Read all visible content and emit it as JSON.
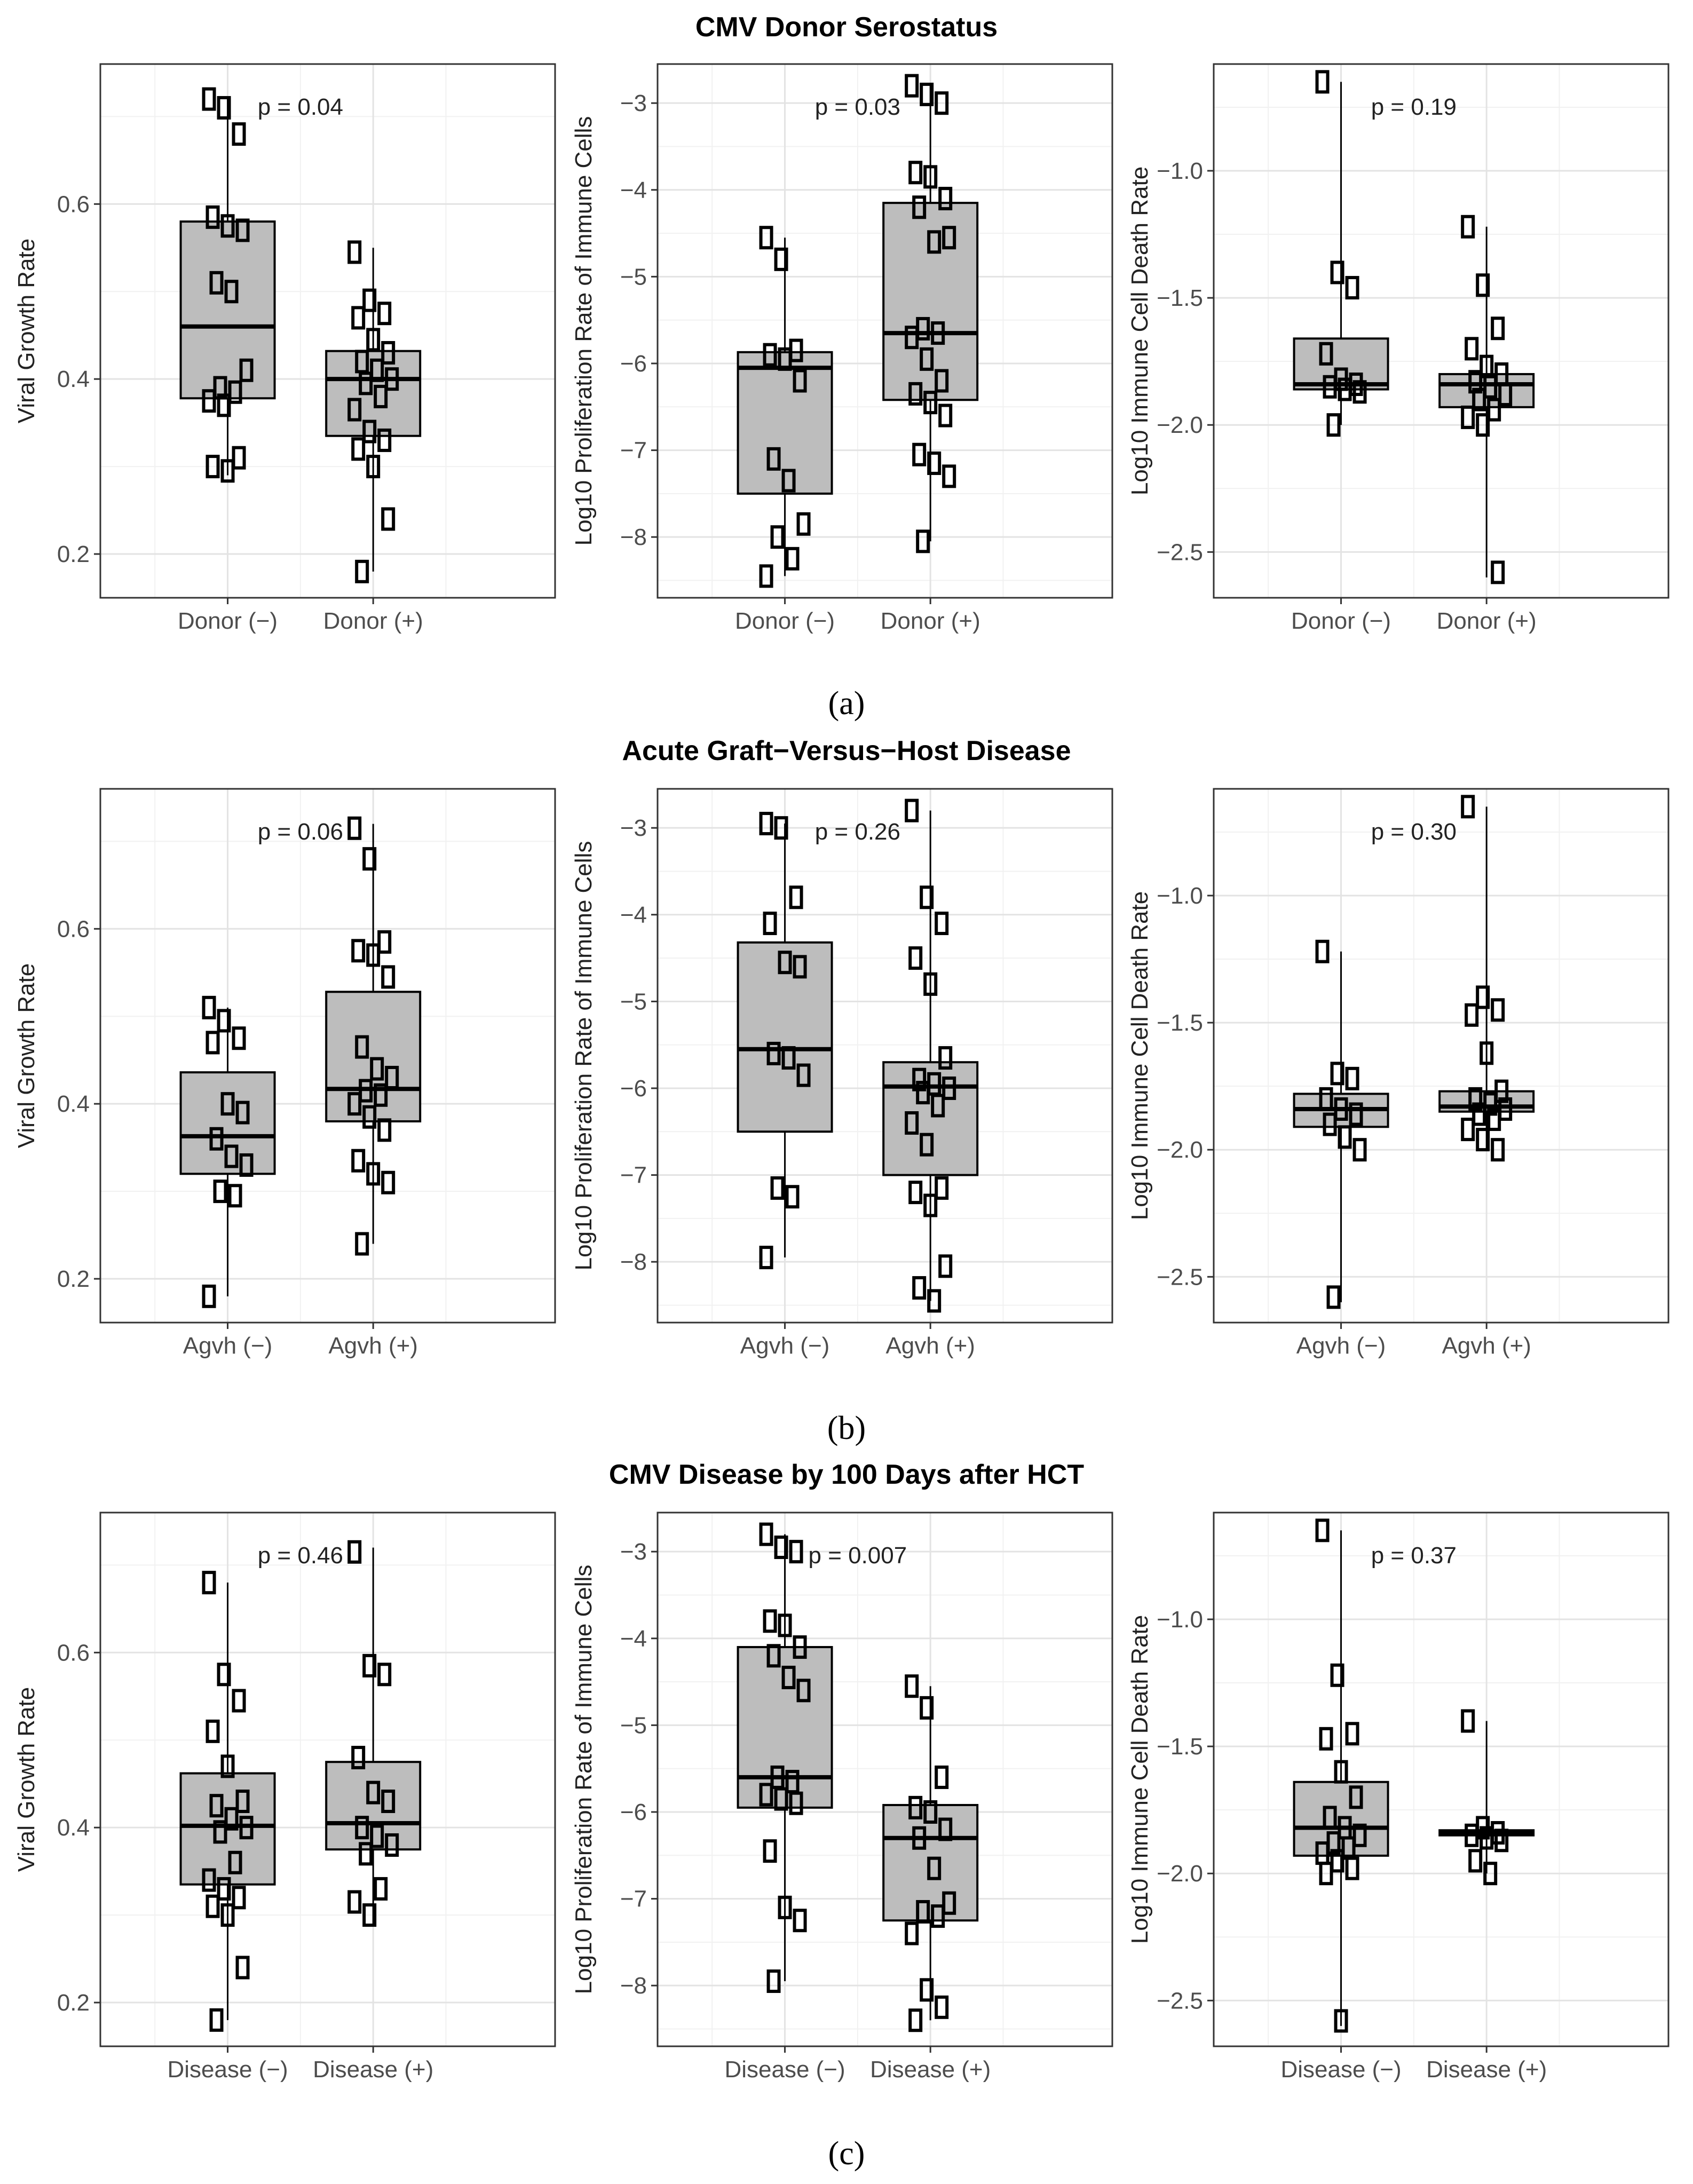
{
  "sections": [
    {
      "title": "CMV Donor Serostatus",
      "caption": "(a)",
      "panels": [
        {
          "ylabel": "Viral Growth Rate",
          "ylim": [
            0.15,
            0.76
          ],
          "yticks": [
            "0.2",
            "0.4",
            "0.6"
          ],
          "ytick_values": [
            0.2,
            0.4,
            0.6
          ],
          "categories": [
            "Donor (−)",
            "Donor (+)"
          ],
          "p_value": "p = 0.04",
          "groups": [
            {
              "q1": 0.378,
              "median": 0.46,
              "q3": 0.58,
              "whisker_low": 0.29,
              "whisker_high": 0.72,
              "points": [
                0.72,
                0.71,
                0.68,
                0.585,
                0.575,
                0.57,
                0.51,
                0.5,
                0.41,
                0.39,
                0.385,
                0.375,
                0.37,
                0.31,
                0.3,
                0.295
              ]
            },
            {
              "q1": 0.335,
              "median": 0.4,
              "q3": 0.432,
              "whisker_low": 0.18,
              "whisker_high": 0.55,
              "points": [
                0.545,
                0.49,
                0.475,
                0.47,
                0.445,
                0.43,
                0.42,
                0.41,
                0.4,
                0.395,
                0.38,
                0.365,
                0.34,
                0.33,
                0.32,
                0.3,
                0.24,
                0.18
              ]
            }
          ]
        },
        {
          "ylabel": "Log10 Proliferation Rate of Immune Cells",
          "ylim": [
            -8.7,
            -2.55
          ],
          "yticks": [
            "−8",
            "−7",
            "−6",
            "−5",
            "−4",
            "−3"
          ],
          "ytick_values": [
            -8,
            -7,
            -6,
            -5,
            -4,
            -3
          ],
          "categories": [
            "Donor (−)",
            "Donor (+)"
          ],
          "p_value": "p = 0.03",
          "groups": [
            {
              "q1": -7.5,
              "median": -6.05,
              "q3": -5.87,
              "whisker_low": -8.45,
              "whisker_high": -4.55,
              "points": [
                -4.55,
                -4.8,
                -5.85,
                -5.9,
                -5.95,
                -6.2,
                -7.1,
                -7.35,
                -7.85,
                -8.0,
                -8.25,
                -8.45
              ]
            },
            {
              "q1": -6.42,
              "median": -5.65,
              "q3": -4.15,
              "whisker_low": -8.05,
              "whisker_high": -2.8,
              "points": [
                -2.8,
                -2.9,
                -3.0,
                -3.8,
                -3.85,
                -4.1,
                -4.2,
                -4.6,
                -4.55,
                -5.6,
                -5.65,
                -5.7,
                -5.95,
                -6.2,
                -6.35,
                -6.45,
                -6.6,
                -7.05,
                -7.15,
                -7.3,
                -8.05
              ]
            }
          ]
        },
        {
          "ylabel": "Log10 Immune Cell Death Rate",
          "ylim": [
            -2.68,
            -0.58
          ],
          "yticks": [
            "−2.5",
            "−2.0",
            "−1.5",
            "−1.0"
          ],
          "ytick_values": [
            -2.5,
            -2.0,
            -1.5,
            -1.0
          ],
          "categories": [
            "Donor (−)",
            "Donor (+)"
          ],
          "p_value": "p = 0.19",
          "groups": [
            {
              "q1": -1.86,
              "median": -1.84,
              "q3": -1.66,
              "whisker_low": -2.0,
              "whisker_high": -0.65,
              "points": [
                -0.65,
                -1.4,
                -1.46,
                -1.72,
                -1.82,
                -1.84,
                -1.85,
                -1.86,
                -1.87,
                -2.0
              ]
            },
            {
              "q1": -1.93,
              "median": -1.84,
              "q3": -1.8,
              "whisker_low": -2.6,
              "whisker_high": -1.22,
              "points": [
                -1.22,
                -1.45,
                -1.62,
                -1.7,
                -1.77,
                -1.8,
                -1.83,
                -1.85,
                -1.88,
                -1.9,
                -1.94,
                -1.97,
                -2.0,
                -2.58
              ]
            }
          ]
        }
      ]
    },
    {
      "title": "Acute Graft−Versus−Host Disease",
      "caption": "(b)",
      "panels": [
        {
          "ylabel": "Viral Growth Rate",
          "ylim": [
            0.15,
            0.76
          ],
          "yticks": [
            "0.2",
            "0.4",
            "0.6"
          ],
          "ytick_values": [
            0.2,
            0.4,
            0.6
          ],
          "categories": [
            "Agvh (−)",
            "Agvh (+)"
          ],
          "p_value": "p = 0.06",
          "groups": [
            {
              "q1": 0.32,
              "median": 0.363,
              "q3": 0.436,
              "whisker_low": 0.18,
              "whisker_high": 0.51,
              "points": [
                0.51,
                0.495,
                0.475,
                0.47,
                0.4,
                0.39,
                0.36,
                0.34,
                0.33,
                0.3,
                0.295,
                0.18
              ]
            },
            {
              "q1": 0.38,
              "median": 0.417,
              "q3": 0.528,
              "whisker_low": 0.24,
              "whisker_high": 0.72,
              "points": [
                0.715,
                0.68,
                0.585,
                0.575,
                0.57,
                0.545,
                0.465,
                0.44,
                0.43,
                0.415,
                0.41,
                0.4,
                0.385,
                0.37,
                0.335,
                0.32,
                0.31,
                0.24
              ]
            }
          ]
        },
        {
          "ylabel": "Log10 Proliferation Rate of Immune Cells",
          "ylim": [
            -8.7,
            -2.55
          ],
          "yticks": [
            "−8",
            "−7",
            "−6",
            "−5",
            "−4",
            "−3"
          ],
          "ytick_values": [
            -8,
            -7,
            -6,
            -5,
            -4,
            -3
          ],
          "categories": [
            "Agvh (−)",
            "Agvh (+)"
          ],
          "p_value": "p = 0.26",
          "groups": [
            {
              "q1": -6.5,
              "median": -5.55,
              "q3": -4.32,
              "whisker_low": -7.95,
              "whisker_high": -2.95,
              "points": [
                -2.95,
                -3.0,
                -3.8,
                -4.1,
                -4.55,
                -4.6,
                -5.6,
                -5.65,
                -5.85,
                -7.15,
                -7.25,
                -7.95
              ]
            },
            {
              "q1": -7.0,
              "median": -5.98,
              "q3": -5.7,
              "whisker_low": -8.45,
              "whisker_high": -2.8,
              "points": [
                -2.8,
                -3.8,
                -4.1,
                -4.5,
                -4.8,
                -5.65,
                -5.9,
                -5.95,
                -6.0,
                -6.05,
                -6.2,
                -6.4,
                -6.65,
                -7.15,
                -7.2,
                -7.35,
                -8.05,
                -8.3,
                -8.45
              ]
            }
          ]
        },
        {
          "ylabel": "Log10 Immune Cell Death Rate",
          "ylim": [
            -2.68,
            -0.58
          ],
          "yticks": [
            "−2.5",
            "−2.0",
            "−1.5",
            "−1.0"
          ],
          "ytick_values": [
            -2.5,
            -2.0,
            -1.5,
            -1.0
          ],
          "categories": [
            "Agvh (−)",
            "Agvh (+)"
          ],
          "p_value": "p = 0.30",
          "groups": [
            {
              "q1": -1.91,
              "median": -1.84,
              "q3": -1.78,
              "whisker_low": -2.6,
              "whisker_high": -1.22,
              "points": [
                -1.22,
                -1.7,
                -1.72,
                -1.8,
                -1.84,
                -1.86,
                -1.9,
                -1.95,
                -2.0,
                -2.58
              ]
            },
            {
              "q1": -1.85,
              "median": -1.83,
              "q3": -1.77,
              "whisker_low": -2.0,
              "whisker_high": -0.65,
              "points": [
                -0.65,
                -1.4,
                -1.45,
                -1.47,
                -1.62,
                -1.77,
                -1.8,
                -1.82,
                -1.84,
                -1.86,
                -1.88,
                -1.92,
                -1.96,
                -2.0
              ]
            }
          ]
        }
      ]
    },
    {
      "title": "CMV Disease by 100 Days after HCT",
      "caption": "(c)",
      "panels": [
        {
          "ylabel": "Viral Growth Rate",
          "ylim": [
            0.15,
            0.76
          ],
          "yticks": [
            "0.2",
            "0.4",
            "0.6"
          ],
          "ytick_values": [
            0.2,
            0.4,
            0.6
          ],
          "categories": [
            "Disease (−)",
            "Disease (+)"
          ],
          "p_value": "p = 0.46",
          "groups": [
            {
              "q1": 0.335,
              "median": 0.402,
              "q3": 0.462,
              "whisker_low": 0.18,
              "whisker_high": 0.68,
              "points": [
                0.68,
                0.575,
                0.545,
                0.51,
                0.47,
                0.43,
                0.425,
                0.41,
                0.4,
                0.395,
                0.36,
                0.34,
                0.33,
                0.32,
                0.31,
                0.3,
                0.24,
                0.18
              ]
            },
            {
              "q1": 0.375,
              "median": 0.405,
              "q3": 0.475,
              "whisker_low": 0.29,
              "whisker_high": 0.72,
              "points": [
                0.715,
                0.585,
                0.575,
                0.48,
                0.44,
                0.43,
                0.4,
                0.39,
                0.38,
                0.37,
                0.33,
                0.315,
                0.3
              ]
            }
          ]
        },
        {
          "ylabel": "Log10 Proliferation Rate of Immune Cells",
          "ylim": [
            -8.7,
            -2.55
          ],
          "yticks": [
            "−8",
            "−7",
            "−6",
            "−5",
            "−4",
            "−3"
          ],
          "ytick_values": [
            -8,
            -7,
            -6,
            -5,
            -4,
            -3
          ],
          "categories": [
            "Disease (−)",
            "Disease (+)"
          ],
          "p_value": "p = 0.007",
          "groups": [
            {
              "q1": -5.95,
              "median": -5.6,
              "q3": -4.1,
              "whisker_low": -7.95,
              "whisker_high": -2.8,
              "points": [
                -2.8,
                -2.95,
                -3.0,
                -3.8,
                -3.85,
                -4.1,
                -4.2,
                -4.45,
                -4.6,
                -5.6,
                -5.65,
                -5.8,
                -5.85,
                -5.9,
                -6.45,
                -7.1,
                -7.25,
                -7.95
              ]
            },
            {
              "q1": -7.25,
              "median": -6.3,
              "q3": -5.92,
              "whisker_low": -8.4,
              "whisker_high": -4.55,
              "points": [
                -4.55,
                -4.8,
                -5.6,
                -5.95,
                -6.0,
                -6.2,
                -6.3,
                -6.65,
                -7.05,
                -7.15,
                -7.2,
                -7.4,
                -8.05,
                -8.25,
                -8.4
              ]
            }
          ]
        },
        {
          "ylabel": "Log10 Immune Cell Death Rate",
          "ylim": [
            -2.68,
            -0.58
          ],
          "yticks": [
            "−2.5",
            "−2.0",
            "−1.5",
            "−1.0"
          ],
          "ytick_values": [
            -2.5,
            -2.0,
            -1.5,
            -1.0
          ],
          "categories": [
            "Disease (−)",
            "Disease (+)"
          ],
          "p_value": "p = 0.37",
          "groups": [
            {
              "q1": -1.93,
              "median": -1.82,
              "q3": -1.64,
              "whisker_low": -2.6,
              "whisker_high": -0.65,
              "points": [
                -0.65,
                -1.22,
                -1.45,
                -1.47,
                -1.6,
                -1.7,
                -1.78,
                -1.82,
                -1.85,
                -1.88,
                -1.9,
                -1.92,
                -1.95,
                -1.98,
                -2.0,
                -2.58
              ]
            },
            {
              "q1": -1.85,
              "median": -1.84,
              "q3": -1.83,
              "whisker_low": -2.0,
              "whisker_high": -1.4,
              "points": [
                -1.4,
                -1.82,
                -1.84,
                -1.85,
                -1.86,
                -1.87,
                -1.95,
                -2.0
              ]
            }
          ]
        }
      ]
    }
  ],
  "chart_data": [
    {
      "type": "box",
      "title": "CMV Donor Serostatus",
      "ylabel": "Viral Growth Rate",
      "categories": [
        "Donor (−)",
        "Donor (+)"
      ],
      "ylim": [
        0.15,
        0.76
      ],
      "annotation": "p = 0.04"
    },
    {
      "type": "box",
      "title": "CMV Donor Serostatus",
      "ylabel": "Log10 Proliferation Rate of Immune Cells",
      "categories": [
        "Donor (−)",
        "Donor (+)"
      ],
      "ylim": [
        -8.7,
        -2.55
      ],
      "annotation": "p = 0.03"
    },
    {
      "type": "box",
      "title": "CMV Donor Serostatus",
      "ylabel": "Log10 Immune Cell Death Rate",
      "categories": [
        "Donor (−)",
        "Donor (+)"
      ],
      "ylim": [
        -2.68,
        -0.58
      ],
      "annotation": "p = 0.19"
    },
    {
      "type": "box",
      "title": "Acute Graft−Versus−Host Disease",
      "ylabel": "Viral Growth Rate",
      "categories": [
        "Agvh (−)",
        "Agvh (+)"
      ],
      "ylim": [
        0.15,
        0.76
      ],
      "annotation": "p = 0.06"
    },
    {
      "type": "box",
      "title": "Acute Graft−Versus−Host Disease",
      "ylabel": "Log10 Proliferation Rate of Immune Cells",
      "categories": [
        "Agvh (−)",
        "Agvh (+)"
      ],
      "ylim": [
        -8.7,
        -2.55
      ],
      "annotation": "p = 0.26"
    },
    {
      "type": "box",
      "title": "Acute Graft−Versus−Host Disease",
      "ylabel": "Log10 Immune Cell Death Rate",
      "categories": [
        "Agvh (−)",
        "Agvh (+)"
      ],
      "ylim": [
        -2.68,
        -0.58
      ],
      "annotation": "p = 0.30"
    },
    {
      "type": "box",
      "title": "CMV Disease by 100 Days after HCT",
      "ylabel": "Viral Growth Rate",
      "categories": [
        "Disease (−)",
        "Disease (+)"
      ],
      "ylim": [
        0.15,
        0.76
      ],
      "annotation": "p = 0.46"
    },
    {
      "type": "box",
      "title": "CMV Disease by 100 Days after HCT",
      "ylabel": "Log10 Proliferation Rate of Immune Cells",
      "categories": [
        "Disease (−)",
        "Disease (+)"
      ],
      "ylim": [
        -8.7,
        -2.55
      ],
      "annotation": "p = 0.007"
    },
    {
      "type": "box",
      "title": "CMV Disease by 100 Days after HCT",
      "ylabel": "Log10 Immune Cell Death Rate",
      "categories": [
        "Disease (−)",
        "Disease (+)"
      ],
      "ylim": [
        -2.68,
        -0.58
      ],
      "annotation": "p = 0.37"
    }
  ]
}
